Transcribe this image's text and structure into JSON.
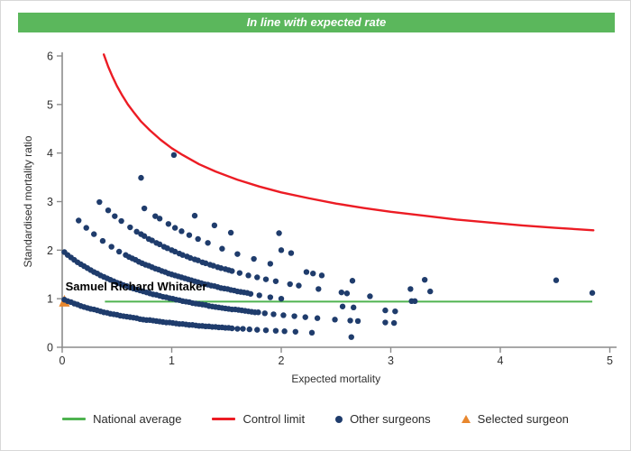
{
  "header": {
    "title": "In line with expected rate",
    "background": "#5bb75c",
    "text_color": "#ffffff"
  },
  "chart_data": {
    "type": "scatter",
    "title": "",
    "xlabel": "Expected mortality",
    "ylabel": "Standardised mortality ratio",
    "xlim": [
      0,
      5
    ],
    "ylim": [
      0,
      6
    ],
    "x_ticks": [
      0,
      1,
      2,
      3,
      4,
      5
    ],
    "y_ticks": [
      0,
      1,
      2,
      3,
      4,
      5,
      6
    ],
    "grid": false,
    "legend_position": "bottom",
    "axis_color": "#8c8c8c",
    "tick_label_color": "#303030",
    "annotation": {
      "text": "Samuel Richard Whitaker",
      "x": 0.03,
      "y": 1.17,
      "color": "#000000"
    },
    "national_average": {
      "label": "National average",
      "color": "#4fb350",
      "y": 0.94,
      "x_start": 0.39,
      "x_end": 4.84
    },
    "control_limit": {
      "label": "Control limit",
      "color": "#ec1c24",
      "points": [
        [
          0.38,
          6.03
        ],
        [
          0.42,
          5.78
        ],
        [
          0.46,
          5.57
        ],
        [
          0.5,
          5.38
        ],
        [
          0.55,
          5.18
        ],
        [
          0.6,
          5.0
        ],
        [
          0.66,
          4.82
        ],
        [
          0.72,
          4.65
        ],
        [
          0.8,
          4.47
        ],
        [
          0.9,
          4.27
        ],
        [
          1.0,
          4.1
        ],
        [
          1.1,
          3.96
        ],
        [
          1.25,
          3.77
        ],
        [
          1.4,
          3.62
        ],
        [
          1.6,
          3.45
        ],
        [
          1.8,
          3.31
        ],
        [
          2.0,
          3.19
        ],
        [
          2.25,
          3.07
        ],
        [
          2.5,
          2.96
        ],
        [
          2.75,
          2.87
        ],
        [
          3.0,
          2.79
        ],
        [
          3.3,
          2.71
        ],
        [
          3.6,
          2.63
        ],
        [
          3.9,
          2.57
        ],
        [
          4.2,
          2.51
        ],
        [
          4.5,
          2.46
        ],
        [
          4.85,
          2.41
        ]
      ]
    },
    "other_surgeons": {
      "label": "Other surgeons",
      "color": "#1f3c6c",
      "marker": "circle",
      "points": [
        [
          0.02,
          0.98
        ],
        [
          0.05,
          0.95
        ],
        [
          0.08,
          0.93
        ],
        [
          0.11,
          0.9
        ],
        [
          0.14,
          0.88
        ],
        [
          0.17,
          0.85
        ],
        [
          0.2,
          0.83
        ],
        [
          0.23,
          0.81
        ],
        [
          0.26,
          0.79
        ],
        [
          0.29,
          0.78
        ],
        [
          0.32,
          0.76
        ],
        [
          0.35,
          0.74
        ],
        [
          0.38,
          0.72
        ],
        [
          0.41,
          0.71
        ],
        [
          0.44,
          0.69
        ],
        [
          0.47,
          0.68
        ],
        [
          0.5,
          0.67
        ],
        [
          0.53,
          0.65
        ],
        [
          0.56,
          0.64
        ],
        [
          0.59,
          0.63
        ],
        [
          0.62,
          0.62
        ],
        [
          0.65,
          0.61
        ],
        [
          0.68,
          0.6
        ],
        [
          0.71,
          0.58
        ],
        [
          0.74,
          0.57
        ],
        [
          0.77,
          0.56
        ],
        [
          0.8,
          0.56
        ],
        [
          0.83,
          0.55
        ],
        [
          0.86,
          0.54
        ],
        [
          0.89,
          0.53
        ],
        [
          0.92,
          0.52
        ],
        [
          0.95,
          0.51
        ],
        [
          0.98,
          0.51
        ],
        [
          1.01,
          0.5
        ],
        [
          1.04,
          0.49
        ],
        [
          1.07,
          0.48
        ],
        [
          1.1,
          0.48
        ],
        [
          1.13,
          0.47
        ],
        [
          1.16,
          0.46
        ],
        [
          1.19,
          0.46
        ],
        [
          1.22,
          0.45
        ],
        [
          1.25,
          0.44
        ],
        [
          1.28,
          0.44
        ],
        [
          1.31,
          0.43
        ],
        [
          1.34,
          0.43
        ],
        [
          1.37,
          0.42
        ],
        [
          1.4,
          0.42
        ],
        [
          1.43,
          0.41
        ],
        [
          1.46,
          0.41
        ],
        [
          1.49,
          0.4
        ],
        [
          1.52,
          0.4
        ],
        [
          1.55,
          0.39
        ],
        [
          1.6,
          0.38
        ],
        [
          1.65,
          0.38
        ],
        [
          1.71,
          0.37
        ],
        [
          1.78,
          0.36
        ],
        [
          1.86,
          0.35
        ],
        [
          1.95,
          0.34
        ],
        [
          2.03,
          0.33
        ],
        [
          2.13,
          0.32
        ],
        [
          2.28,
          0.3
        ],
        [
          2.64,
          0.21
        ],
        [
          0.02,
          1.96
        ],
        [
          0.05,
          1.9
        ],
        [
          0.08,
          1.85
        ],
        [
          0.11,
          1.8
        ],
        [
          0.14,
          1.75
        ],
        [
          0.17,
          1.71
        ],
        [
          0.2,
          1.67
        ],
        [
          0.23,
          1.63
        ],
        [
          0.26,
          1.59
        ],
        [
          0.29,
          1.55
        ],
        [
          0.32,
          1.52
        ],
        [
          0.35,
          1.48
        ],
        [
          0.38,
          1.45
        ],
        [
          0.41,
          1.42
        ],
        [
          0.44,
          1.39
        ],
        [
          0.47,
          1.36
        ],
        [
          0.5,
          1.33
        ],
        [
          0.53,
          1.31
        ],
        [
          0.56,
          1.28
        ],
        [
          0.59,
          1.26
        ],
        [
          0.62,
          1.23
        ],
        [
          0.65,
          1.21
        ],
        [
          0.68,
          1.19
        ],
        [
          0.71,
          1.17
        ],
        [
          0.74,
          1.15
        ],
        [
          0.77,
          1.13
        ],
        [
          0.8,
          1.11
        ],
        [
          0.83,
          1.09
        ],
        [
          0.86,
          1.08
        ],
        [
          0.89,
          1.06
        ],
        [
          0.92,
          1.04
        ],
        [
          0.95,
          1.03
        ],
        [
          0.98,
          1.01
        ],
        [
          1.01,
          1.0
        ],
        [
          1.04,
          0.98
        ],
        [
          1.07,
          0.97
        ],
        [
          1.1,
          0.95
        ],
        [
          1.13,
          0.94
        ],
        [
          1.16,
          0.93
        ],
        [
          1.19,
          0.91
        ],
        [
          1.22,
          0.9
        ],
        [
          1.25,
          0.89
        ],
        [
          1.28,
          0.88
        ],
        [
          1.31,
          0.87
        ],
        [
          1.34,
          0.85
        ],
        [
          1.37,
          0.84
        ],
        [
          1.4,
          0.83
        ],
        [
          1.43,
          0.82
        ],
        [
          1.46,
          0.81
        ],
        [
          1.49,
          0.8
        ],
        [
          1.52,
          0.79
        ],
        [
          1.55,
          0.78
        ],
        [
          1.58,
          0.78
        ],
        [
          1.61,
          0.77
        ],
        [
          1.64,
          0.76
        ],
        [
          1.67,
          0.75
        ],
        [
          1.7,
          0.74
        ],
        [
          1.73,
          0.73
        ],
        [
          1.76,
          0.72
        ],
        [
          1.79,
          0.72
        ],
        [
          1.85,
          0.7
        ],
        [
          1.93,
          0.68
        ],
        [
          2.02,
          0.66
        ],
        [
          2.12,
          0.64
        ],
        [
          2.22,
          0.62
        ],
        [
          2.33,
          0.6
        ],
        [
          2.49,
          0.57
        ],
        [
          2.63,
          0.55
        ],
        [
          2.7,
          0.54
        ],
        [
          2.95,
          0.51
        ],
        [
          3.03,
          0.5
        ],
        [
          0.15,
          2.61
        ],
        [
          0.22,
          2.46
        ],
        [
          0.29,
          2.33
        ],
        [
          0.37,
          2.19
        ],
        [
          0.45,
          2.07
        ],
        [
          0.52,
          1.97
        ],
        [
          0.58,
          1.9
        ],
        [
          0.61,
          1.86
        ],
        [
          0.64,
          1.83
        ],
        [
          0.67,
          1.8
        ],
        [
          0.7,
          1.76
        ],
        [
          0.73,
          1.73
        ],
        [
          0.76,
          1.7
        ],
        [
          0.79,
          1.68
        ],
        [
          0.82,
          1.65
        ],
        [
          0.85,
          1.62
        ],
        [
          0.88,
          1.6
        ],
        [
          0.91,
          1.57
        ],
        [
          0.94,
          1.55
        ],
        [
          0.97,
          1.52
        ],
        [
          1.0,
          1.5
        ],
        [
          1.03,
          1.48
        ],
        [
          1.06,
          1.46
        ],
        [
          1.09,
          1.44
        ],
        [
          1.12,
          1.42
        ],
        [
          1.15,
          1.4
        ],
        [
          1.18,
          1.38
        ],
        [
          1.21,
          1.36
        ],
        [
          1.24,
          1.34
        ],
        [
          1.27,
          1.32
        ],
        [
          1.3,
          1.3
        ],
        [
          1.33,
          1.29
        ],
        [
          1.36,
          1.27
        ],
        [
          1.39,
          1.26
        ],
        [
          1.42,
          1.24
        ],
        [
          1.45,
          1.22
        ],
        [
          1.48,
          1.21
        ],
        [
          1.51,
          1.2
        ],
        [
          1.54,
          1.18
        ],
        [
          1.57,
          1.17
        ],
        [
          1.6,
          1.15
        ],
        [
          1.63,
          1.14
        ],
        [
          1.66,
          1.13
        ],
        [
          1.69,
          1.12
        ],
        [
          1.72,
          1.1
        ],
        [
          1.8,
          1.07
        ],
        [
          1.9,
          1.03
        ],
        [
          2.0,
          1.0
        ],
        [
          2.56,
          0.84
        ],
        [
          2.66,
          0.82
        ],
        [
          2.95,
          0.76
        ],
        [
          3.04,
          0.74
        ],
        [
          0.34,
          2.99
        ],
        [
          0.42,
          2.82
        ],
        [
          0.48,
          2.7
        ],
        [
          0.54,
          2.6
        ],
        [
          0.62,
          2.47
        ],
        [
          0.68,
          2.38
        ],
        [
          0.72,
          2.33
        ],
        [
          0.75,
          2.29
        ],
        [
          0.79,
          2.23
        ],
        [
          0.82,
          2.2
        ],
        [
          0.86,
          2.15
        ],
        [
          0.89,
          2.12
        ],
        [
          0.93,
          2.07
        ],
        [
          0.96,
          2.04
        ],
        [
          1.0,
          2.0
        ],
        [
          1.03,
          1.97
        ],
        [
          1.07,
          1.93
        ],
        [
          1.1,
          1.9
        ],
        [
          1.14,
          1.87
        ],
        [
          1.17,
          1.84
        ],
        [
          1.21,
          1.81
        ],
        [
          1.24,
          1.79
        ],
        [
          1.28,
          1.75
        ],
        [
          1.31,
          1.73
        ],
        [
          1.35,
          1.7
        ],
        [
          1.38,
          1.68
        ],
        [
          1.42,
          1.65
        ],
        [
          1.45,
          1.63
        ],
        [
          1.49,
          1.61
        ],
        [
          1.52,
          1.59
        ],
        [
          1.55,
          1.57
        ],
        [
          1.62,
          1.53
        ],
        [
          1.7,
          1.48
        ],
        [
          1.78,
          1.44
        ],
        [
          1.86,
          1.4
        ],
        [
          1.95,
          1.36
        ],
        [
          2.08,
          1.3
        ],
        [
          2.16,
          1.27
        ],
        [
          2.34,
          1.2
        ],
        [
          2.55,
          1.13
        ],
        [
          2.6,
          1.11
        ],
        [
          2.81,
          1.05
        ],
        [
          3.19,
          0.95
        ],
        [
          3.22,
          0.95
        ],
        [
          0.75,
          2.86
        ],
        [
          0.85,
          2.7
        ],
        [
          0.89,
          2.65
        ],
        [
          0.97,
          2.54
        ],
        [
          1.03,
          2.46
        ],
        [
          1.09,
          2.39
        ],
        [
          1.16,
          2.31
        ],
        [
          1.24,
          2.23
        ],
        [
          1.33,
          2.15
        ],
        [
          1.46,
          2.03
        ],
        [
          1.6,
          1.92
        ],
        [
          1.75,
          1.82
        ],
        [
          1.9,
          1.72
        ],
        [
          2.23,
          1.55
        ],
        [
          2.29,
          1.52
        ],
        [
          2.37,
          1.48
        ],
        [
          2.65,
          1.37
        ],
        [
          3.18,
          1.2
        ],
        [
          3.36,
          1.15
        ],
        [
          0.72,
          3.49
        ],
        [
          1.21,
          2.71
        ],
        [
          1.39,
          2.51
        ],
        [
          1.54,
          2.36
        ],
        [
          2.0,
          2.0
        ],
        [
          2.09,
          1.94
        ],
        [
          3.31,
          1.39
        ],
        [
          1.98,
          2.35
        ],
        [
          1.02,
          3.96
        ],
        [
          4.51,
          1.38
        ],
        [
          4.84,
          1.12
        ]
      ]
    },
    "selected_surgeon": {
      "label": "Selected surgeon",
      "color": "#e8872e",
      "marker": "triangle",
      "points": [
        [
          0.02,
          0.94
        ]
      ]
    }
  }
}
